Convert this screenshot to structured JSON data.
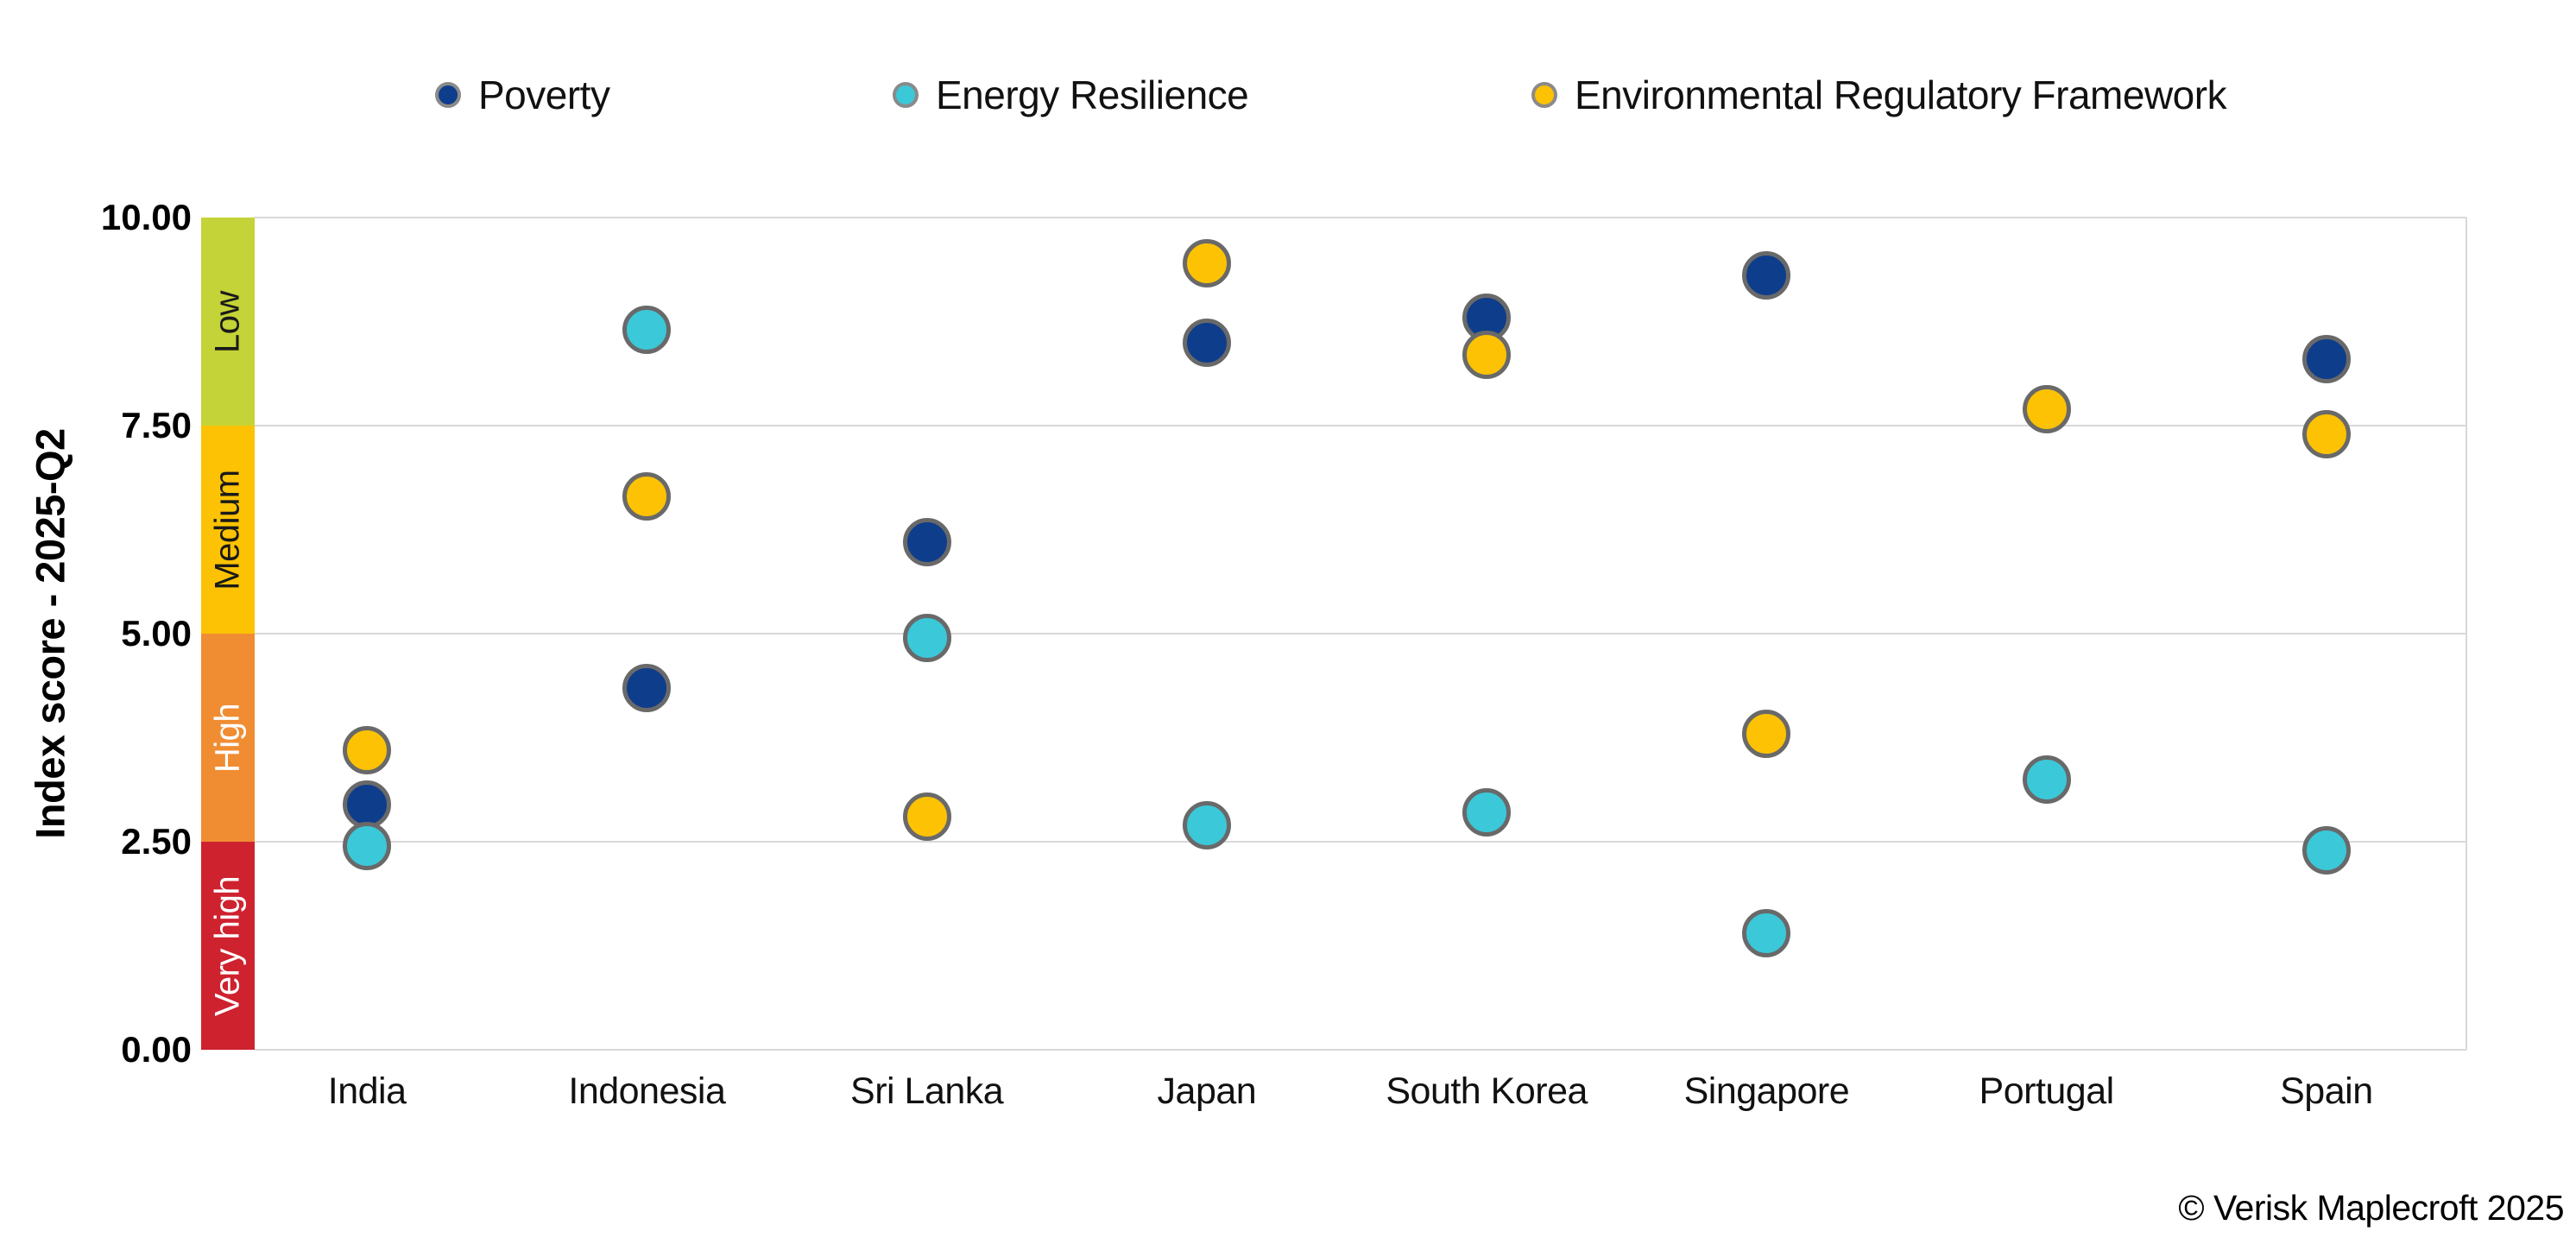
{
  "legend": [
    {
      "label": "Poverty",
      "color": "#0e3d8c"
    },
    {
      "label": "Energy Resilience",
      "color": "#3bc8d9"
    },
    {
      "label": "Environmental Regulatory Framework",
      "color": "#fcc203"
    }
  ],
  "y_axis": {
    "title": "Index score - 2025-Q2",
    "ticks": [
      {
        "label": "10.00",
        "value": 10
      },
      {
        "label": "7.50",
        "value": 7.5
      },
      {
        "label": "5.00",
        "value": 5
      },
      {
        "label": "2.50",
        "value": 2.5
      },
      {
        "label": "0.00",
        "value": 0
      }
    ],
    "range": [
      0,
      10
    ]
  },
  "risk_bands": [
    {
      "label": "Low",
      "from": 7.5,
      "to": 10,
      "color": "#c4d337",
      "text_color": "#1a1a1a"
    },
    {
      "label": "Medium",
      "from": 5,
      "to": 7.5,
      "color": "#fcc203",
      "text_color": "#1a1a1a"
    },
    {
      "label": "High",
      "from": 2.5,
      "to": 5,
      "color": "#f08d33",
      "text_color": "#ffffff"
    },
    {
      "label": "Very high",
      "from": 0,
      "to": 2.5,
      "color": "#ce222f",
      "text_color": "#ffffff"
    }
  ],
  "chart_data": {
    "type": "scatter",
    "title": "",
    "xlabel": "",
    "ylabel": "Index score - 2025-Q2",
    "ylim": [
      0,
      10
    ],
    "grid": true,
    "legend_position": "top",
    "categories": [
      "India",
      "Indonesia",
      "Sri Lanka",
      "Japan",
      "South Korea",
      "Singapore",
      "Portugal",
      "Spain"
    ],
    "series": [
      {
        "name": "Poverty",
        "color": "#0e3d8c",
        "values": [
          2.95,
          4.35,
          6.1,
          8.5,
          8.8,
          9.3,
          null,
          8.3
        ]
      },
      {
        "name": "Energy Resilience",
        "color": "#3bc8d9",
        "values": [
          2.45,
          8.65,
          4.95,
          2.7,
          2.85,
          1.4,
          3.25,
          2.4
        ]
      },
      {
        "name": "Environmental Regulatory Framework",
        "color": "#fcc203",
        "values": [
          3.6,
          6.65,
          2.8,
          9.45,
          8.35,
          3.8,
          7.7,
          7.4
        ]
      }
    ]
  },
  "marker_style": {
    "stroke_color": "#696969"
  },
  "footer": {
    "copyright": "© Verisk Maplecroft 2025"
  }
}
